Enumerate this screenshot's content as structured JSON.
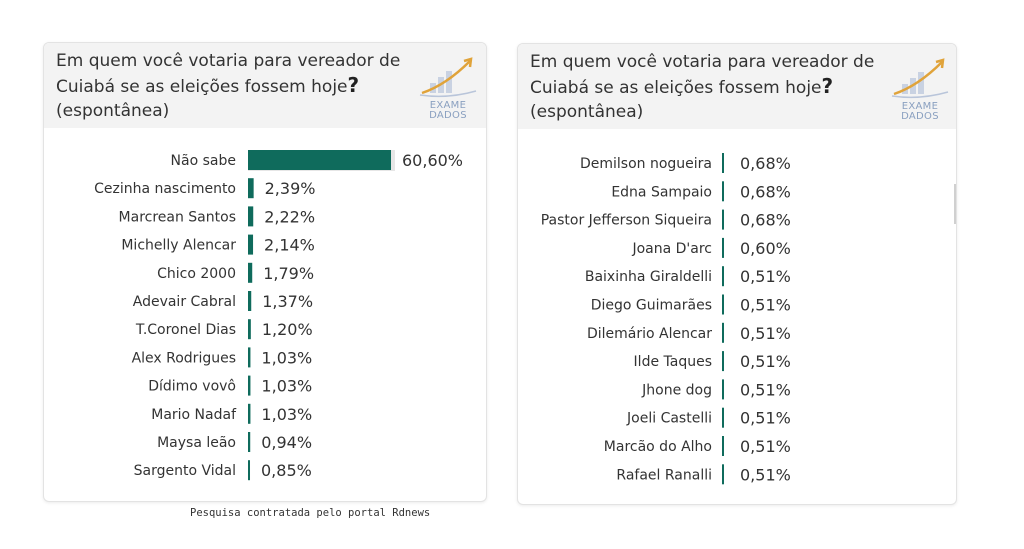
{
  "panels": [
    {
      "title": "Em quem você votaria para vereador de Cuiabá se as eleições fossem hoje",
      "title_mark": "?",
      "subtitle": "(espontânea)",
      "logo_line1": "EXAME",
      "logo_line2": "DADOS"
    },
    {
      "title": "Em quem você votaria para vereador de Cuiabá se as eleições fossem hoje",
      "title_mark": "?",
      "subtitle": "(espontânea)",
      "logo_line1": "EXAME",
      "logo_line2": "DADOS"
    }
  ],
  "footer": "Pesquisa contratada pelo portal Rdnews",
  "colors": {
    "bar": "#0f6b5c",
    "header_bg": "#f3f3f3"
  },
  "chart_data": [
    {
      "type": "bar",
      "orientation": "horizontal",
      "title": "Em quem você votaria para vereador de Cuiabá se as eleições fossem hoje? (espontânea)",
      "categories": [
        "Não sabe",
        "Cezinha nascimento",
        "Marcrean Santos",
        "Michelly Alencar",
        "Chico 2000",
        "Adevair Cabral",
        "T.Coronel Dias",
        "Alex Rodrigues",
        "Dídimo vovô",
        "Mario Nadaf",
        "Maysa leão",
        "Sargento Vidal"
      ],
      "values": [
        60.6,
        2.39,
        2.22,
        2.14,
        1.79,
        1.37,
        1.2,
        1.03,
        1.03,
        1.03,
        0.94,
        0.85
      ],
      "value_labels": [
        "60,60%",
        "2,39%",
        "2,22%",
        "2,14%",
        "1,79%",
        "1,37%",
        "1,20%",
        "1,03%",
        "1,03%",
        "1,03%",
        "0,94%",
        "0,85%"
      ],
      "xlim": [
        0,
        60.6
      ],
      "grid": false
    },
    {
      "type": "bar",
      "orientation": "horizontal",
      "title": "Em quem você votaria para vereador de Cuiabá se as eleições fossem hoje? (espontânea)",
      "categories": [
        "Demilson nogueira",
        "Edna Sampaio",
        "Pastor Jefferson Siqueira",
        "Joana D'arc",
        "Baixinha Giraldelli",
        "Diego Guimarães",
        "Dilemário Alencar",
        "Ilde Taques",
        "Jhone dog",
        "Joeli Castelli",
        "Marcão do Alho",
        "Rafael Ranalli"
      ],
      "values": [
        0.68,
        0.68,
        0.68,
        0.6,
        0.51,
        0.51,
        0.51,
        0.51,
        0.51,
        0.51,
        0.51,
        0.51
      ],
      "value_labels": [
        "0,68%",
        "0,68%",
        "0,68%",
        "0,60%",
        "0,51%",
        "0,51%",
        "0,51%",
        "0,51%",
        "0,51%",
        "0,51%",
        "0,51%",
        "0,51%"
      ],
      "xlim": [
        0,
        60.6
      ],
      "grid": false
    }
  ]
}
